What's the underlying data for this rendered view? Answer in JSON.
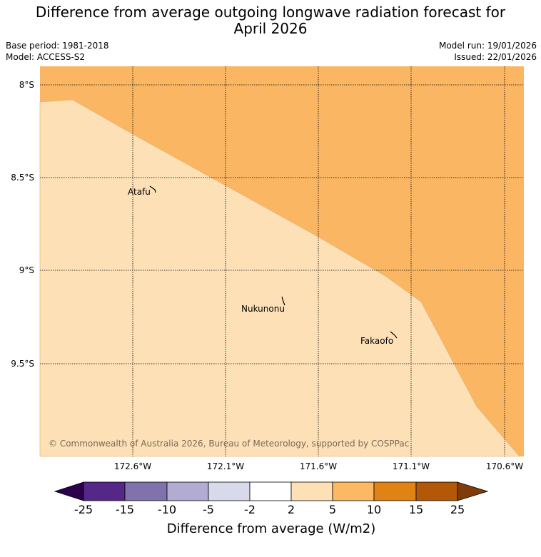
{
  "title_line1": "Difference from average outgoing longwave radiation forecast for",
  "title_line2": "April 2026",
  "meta": {
    "base_period": "Base period: 1981-2018",
    "model": "Model: ACCESS-S2",
    "model_run": "Model run: 19/01/2026",
    "issued": "Issued: 22/01/2026"
  },
  "map": {
    "lat_labels": [
      "8°S",
      "8.5°S",
      "9°S",
      "9.5°S"
    ],
    "lon_labels": [
      "172.6°W",
      "172.1°W",
      "171.6°W",
      "171.1°W",
      "170.6°W"
    ],
    "places": [
      {
        "name": "Atafu"
      },
      {
        "name": "Nukunonu"
      },
      {
        "name": "Fakaofo"
      }
    ],
    "regions": [
      {
        "category": "5 to 10",
        "color": "#fbb663"
      },
      {
        "category": "2 to 5",
        "color": "#fde0b6"
      }
    ],
    "copyright": "© Commonwealth of Australia 2026, Bureau of Meteorology, supported by COSPPac"
  },
  "colorbar": {
    "label": "Difference from average (W/m2)",
    "ticks": [
      "-25",
      "-15",
      "-10",
      "-5",
      "-2",
      "2",
      "5",
      "10",
      "15",
      "25"
    ],
    "under_color": "#2d004b",
    "over_color": "#7f3b08",
    "colors": [
      "#542788",
      "#8073ac",
      "#b2abd2",
      "#d8daeb",
      "#ffffff",
      "#fee0b6",
      "#fdb863",
      "#e08214",
      "#b35806"
    ]
  }
}
